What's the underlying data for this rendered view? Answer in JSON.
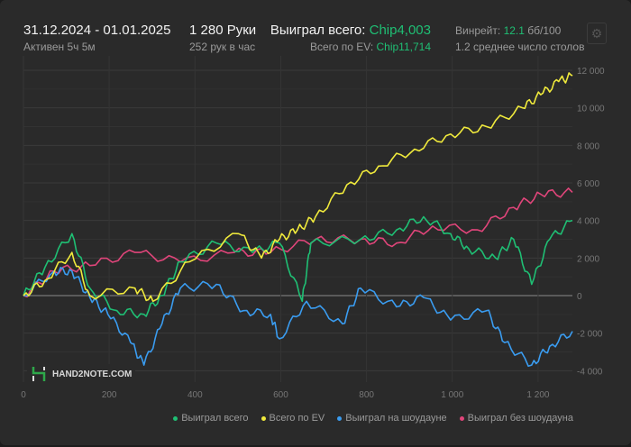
{
  "header": {
    "date_range": "31.12.2024 - 01.01.2025",
    "active": "Активен 5ч 5м",
    "hands": "1 280 Руки",
    "hands_per_hour": "252 рук в час",
    "won_label": "Выиграл всего: ",
    "won_value": "Chip4,003",
    "ev_label": "Всего по EV: ",
    "ev_value": "Chip11,714",
    "winrate_label": "Винрейт: ",
    "winrate_value": "12.1",
    "winrate_unit": " бб/100",
    "tables": "1.2 среднее число столов",
    "settings_icon": "gear-icon"
  },
  "watermark": "HAND2NOTE.COM",
  "chart_data": {
    "type": "line",
    "xlim": [
      0,
      1280
    ],
    "ylim": [
      -5000,
      12500
    ],
    "grid": true,
    "legend_position": "bottom-right",
    "x_ticks": [
      "0",
      "200",
      "400",
      "600",
      "800",
      "1 000",
      "1 200"
    ],
    "x_tick_values": [
      0,
      200,
      400,
      600,
      800,
      1000,
      1200
    ],
    "y_ticks": [
      "12 000",
      "10 000",
      "8 000",
      "6 000",
      "4 000",
      "2 000",
      "0",
      "-2 000",
      "-4 000"
    ],
    "y_tick_values": [
      12000,
      10000,
      8000,
      6000,
      4000,
      2000,
      0,
      -2000,
      -4000
    ],
    "series": [
      {
        "name": "Выиграл всего",
        "color": "#1fbf74",
        "x": [
          0,
          50,
          113,
          155,
          218,
          281,
          323,
          366,
          450,
          534,
          597,
          650,
          670,
          786,
          870,
          933,
          996,
          1038,
          1101,
          1143,
          1185,
          1227,
          1280
        ],
        "y": [
          0,
          1500,
          3300,
          400,
          -800,
          -1000,
          0,
          1800,
          2800,
          2300,
          2800,
          -300,
          2800,
          3000,
          3500,
          4200,
          3300,
          2500,
          2000,
          3000,
          600,
          3000,
          4003
        ]
      },
      {
        "name": "Всего по EV",
        "color": "#f0ea3c",
        "x": [
          0,
          50,
          113,
          155,
          260,
          302,
          387,
          502,
          555,
          597,
          639,
          681,
          754,
          828,
          912,
          996,
          1080,
          1164,
          1206,
          1248,
          1280
        ],
        "y": [
          0,
          800,
          2300,
          0,
          400,
          -300,
          1800,
          3300,
          2000,
          3000,
          3500,
          4200,
          5900,
          6900,
          7800,
          8600,
          9000,
          10000,
          10700,
          11400,
          11714
        ]
      },
      {
        "name": "Выиграл на шоудауне",
        "color": "#3a9cf0",
        "x": [
          0,
          71,
          113,
          155,
          197,
          250,
          281,
          323,
          366,
          450,
          513,
          576,
          597,
          660,
          744,
          786,
          870,
          933,
          996,
          1080,
          1122,
          1185,
          1227,
          1280
        ],
        "y": [
          0,
          1300,
          1300,
          -100,
          -1000,
          -2500,
          -3700,
          -1500,
          400,
          600,
          -800,
          -1000,
          -2300,
          -300,
          -1500,
          400,
          -600,
          -100,
          -1300,
          -800,
          -2500,
          -3700,
          -2700,
          -1900
        ]
      },
      {
        "name": "Выиграл без шоудауна",
        "color": "#e0457a",
        "x": [
          0,
          71,
          155,
          260,
          366,
          492,
          576,
          681,
          786,
          870,
          954,
          1059,
          1143,
          1206,
          1280
        ],
        "y": [
          0,
          1300,
          1600,
          2300,
          1800,
          2300,
          2300,
          3000,
          3000,
          2800,
          3700,
          3500,
          4700,
          5400,
          5500
        ]
      }
    ]
  }
}
